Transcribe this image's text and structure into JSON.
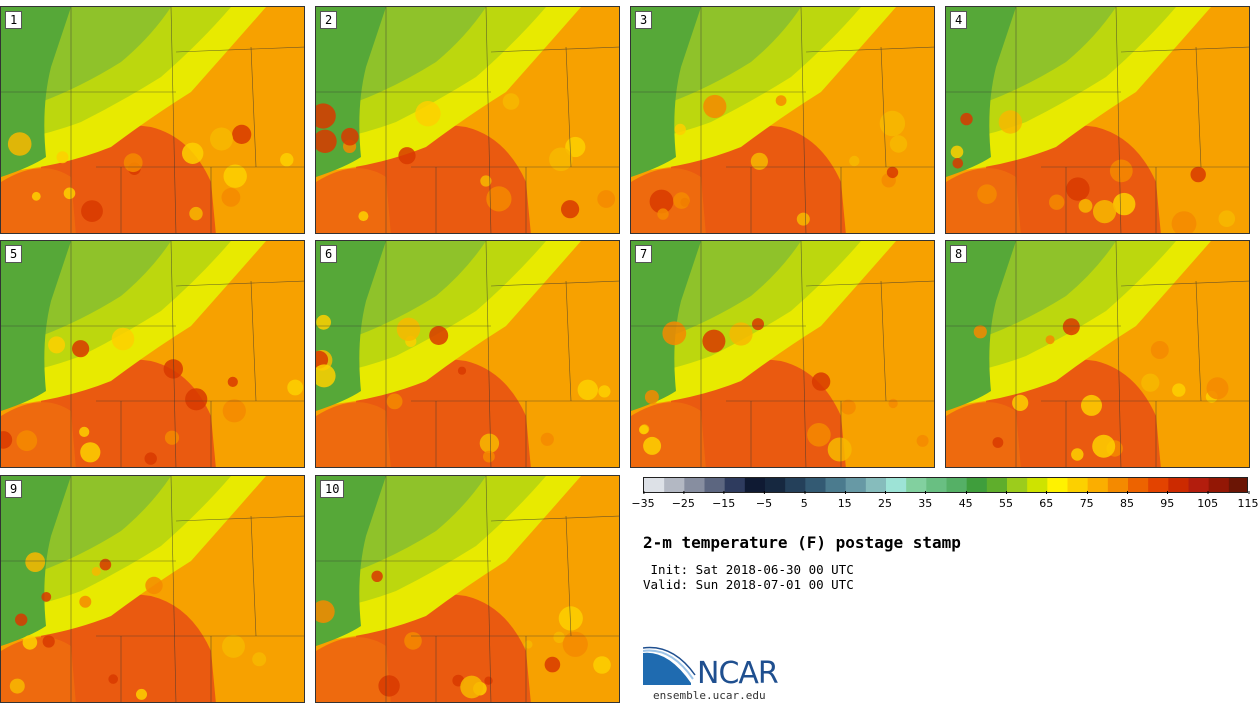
{
  "panels": [
    {
      "label": "1"
    },
    {
      "label": "2"
    },
    {
      "label": "3"
    },
    {
      "label": "4"
    },
    {
      "label": "5"
    },
    {
      "label": "6"
    },
    {
      "label": "7"
    },
    {
      "label": "8"
    },
    {
      "label": "9"
    },
    {
      "label": "10"
    }
  ],
  "colorbar": {
    "colors": [
      "#dde1e7",
      "#b3b8c3",
      "#878ea0",
      "#5c6680",
      "#2e3b5e",
      "#0f1a33",
      "#162840",
      "#24405a",
      "#335a73",
      "#4b7b8e",
      "#6799a5",
      "#86bcbc",
      "#9de3d6",
      "#82d09f",
      "#69bf82",
      "#55b066",
      "#3f9e3c",
      "#5fae2c",
      "#9ccc1c",
      "#cee300",
      "#fff200",
      "#fcd000",
      "#fbae00",
      "#f48a00",
      "#ed6300",
      "#e34300",
      "#cc2a00",
      "#b31d0d",
      "#931705",
      "#6b1505"
    ],
    "tick_labels": [
      "−35",
      "−25",
      "−15",
      "−5",
      "5",
      "15",
      "25",
      "35",
      "45",
      "55",
      "65",
      "75",
      "85",
      "95",
      "105",
      "115"
    ]
  },
  "title": "2-m temperature (F) postage stamp",
  "init": " Init: Sat 2018-06-30 00 UTC",
  "valid": "Valid: Sun 2018-07-01 00 UTC",
  "logo_text": "NCAR",
  "site": "ensemble.ucar.edu"
}
